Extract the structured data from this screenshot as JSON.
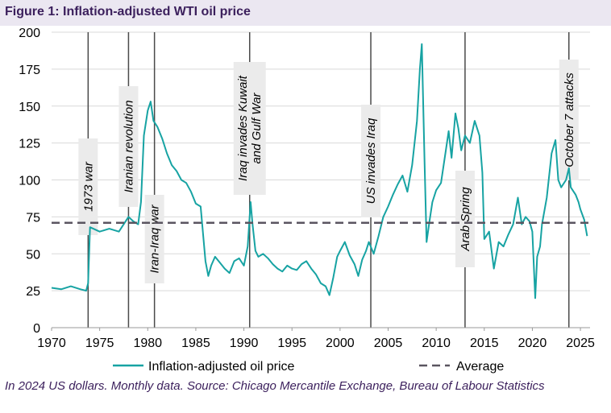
{
  "header": {
    "title": "Figure 1: Inflation-adjusted WTI oil price"
  },
  "footer": {
    "note": "In 2024 US dollars. Monthly data. Source: Chicago Mercantile Exchange, Bureau of Labour Statistics"
  },
  "colors": {
    "series": "#17a3a3",
    "average": "#5a5560",
    "event_line": "#4a4a4a",
    "grid": "#d9d9d9",
    "title_bg": "#ebe7f1",
    "title_text": "#3b1f5c"
  },
  "chart_data": {
    "type": "line",
    "xlim": [
      1970,
      2026
    ],
    "ylim": [
      0,
      200
    ],
    "x_ticks": [
      1970,
      1975,
      1980,
      1985,
      1990,
      1995,
      2000,
      2005,
      2010,
      2015,
      2020,
      2025
    ],
    "x_tick_labels": [
      "1970",
      "1975",
      "1980",
      "1985",
      "1990",
      "1995",
      "2000",
      "2005",
      "2010",
      "2015",
      "2020",
      "2025"
    ],
    "y_ticks": [
      0,
      25,
      50,
      75,
      100,
      125,
      150,
      175,
      200
    ],
    "y_tick_labels": [
      "0",
      "25",
      "50",
      "75",
      "100",
      "125",
      "150",
      "175",
      "200"
    ],
    "grid": "horizontal",
    "legend_position": "bottom",
    "series": [
      {
        "name": "Inflation-adjusted oil price",
        "style": "solid",
        "x": [
          1970.0,
          1971.0,
          1972.0,
          1973.0,
          1973.6,
          1973.8,
          1974.0,
          1975.0,
          1976.0,
          1977.0,
          1978.0,
          1978.5,
          1979.0,
          1979.3,
          1979.6,
          1980.0,
          1980.3,
          1980.6,
          1981.0,
          1981.5,
          1982.0,
          1982.5,
          1983.0,
          1983.5,
          1984.0,
          1984.5,
          1985.0,
          1985.5,
          1986.0,
          1986.3,
          1986.6,
          1987.0,
          1987.5,
          1988.0,
          1988.5,
          1989.0,
          1989.5,
          1990.0,
          1990.4,
          1990.7,
          1990.9,
          1991.2,
          1991.5,
          1992.0,
          1992.5,
          1993.0,
          1993.5,
          1994.0,
          1994.5,
          1995.0,
          1995.5,
          1996.0,
          1996.5,
          1997.0,
          1997.5,
          1998.0,
          1998.5,
          1998.9,
          1999.3,
          1999.7,
          2000.0,
          2000.5,
          2001.0,
          2001.5,
          2001.9,
          2002.3,
          2002.7,
          2003.0,
          2003.5,
          2004.0,
          2004.5,
          2005.0,
          2005.5,
          2006.0,
          2006.5,
          2007.0,
          2007.5,
          2008.0,
          2008.3,
          2008.5,
          2008.8,
          2009.0,
          2009.3,
          2009.6,
          2010.0,
          2010.5,
          2011.0,
          2011.3,
          2011.6,
          2012.0,
          2012.3,
          2012.6,
          2013.0,
          2013.5,
          2014.0,
          2014.5,
          2014.8,
          2015.0,
          2015.5,
          2016.0,
          2016.5,
          2017.0,
          2017.5,
          2018.0,
          2018.5,
          2018.9,
          2019.3,
          2019.7,
          2020.0,
          2020.3,
          2020.5,
          2020.8,
          2021.0,
          2021.5,
          2022.0,
          2022.4,
          2022.7,
          2023.0,
          2023.5,
          2023.8,
          2024.0,
          2024.5,
          2024.8,
          2025.0,
          2025.4,
          2025.7
        ],
        "values": [
          27,
          26,
          28,
          26,
          25,
          30,
          68,
          65,
          67,
          65,
          75,
          72,
          70,
          85,
          130,
          147,
          153,
          140,
          136,
          128,
          118,
          110,
          106,
          100,
          98,
          92,
          84,
          82,
          45,
          35,
          42,
          48,
          44,
          40,
          37,
          45,
          47,
          42,
          55,
          85,
          70,
          52,
          48,
          50,
          47,
          43,
          40,
          38,
          42,
          40,
          39,
          43,
          45,
          40,
          36,
          30,
          28,
          22,
          34,
          48,
          52,
          58,
          49,
          43,
          35,
          46,
          52,
          58,
          50,
          62,
          75,
          82,
          90,
          97,
          103,
          92,
          110,
          140,
          175,
          192,
          110,
          58,
          72,
          85,
          93,
          98,
          120,
          133,
          115,
          145,
          135,
          120,
          130,
          125,
          140,
          130,
          105,
          60,
          65,
          40,
          58,
          55,
          63,
          70,
          88,
          70,
          75,
          72,
          65,
          20,
          48,
          55,
          70,
          88,
          118,
          127,
          100,
          95,
          100,
          108,
          95,
          90,
          85,
          80,
          73,
          62
        ]
      },
      {
        "name": "Average",
        "style": "dashed",
        "value": 71
      }
    ],
    "events": [
      {
        "x": 1973.8,
        "label": "1973 war"
      },
      {
        "x": 1978.0,
        "label": "Iranian revolution"
      },
      {
        "x": 1980.7,
        "label": "Iran-Iraq war"
      },
      {
        "x": 1990.6,
        "label": "Iraq invades Kuwait\nand Gulf War"
      },
      {
        "x": 2003.2,
        "label": "US invades Iraq"
      },
      {
        "x": 2013.0,
        "label": "Arab Spring"
      },
      {
        "x": 2023.8,
        "label": "October 7 attacks"
      }
    ]
  }
}
